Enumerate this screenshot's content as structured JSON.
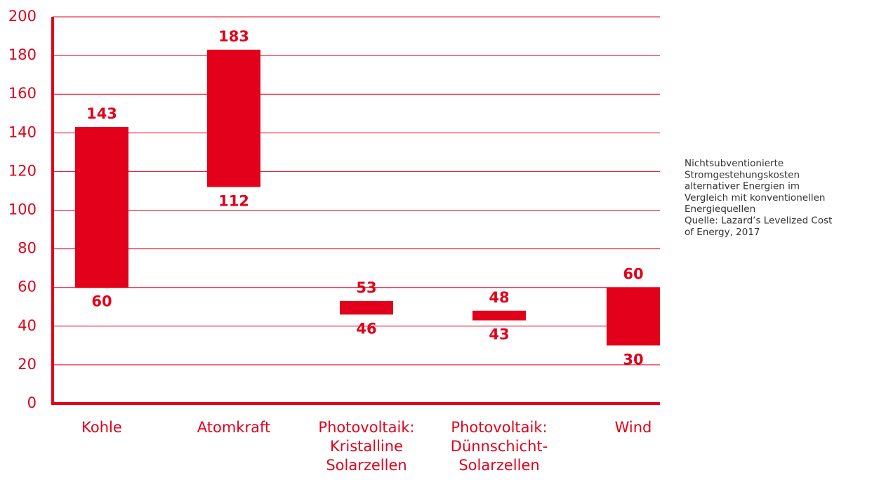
{
  "chart_data": {
    "type": "range-bar",
    "categories": [
      [
        "Kohle"
      ],
      [
        "Atomkraft"
      ],
      [
        "Photovoltaik:",
        "Kristalline",
        "Solarzellen"
      ],
      [
        "Photovoltaik:",
        "Dünnschicht-",
        "Solarzellen"
      ],
      [
        "Wind"
      ]
    ],
    "low": [
      60,
      112,
      46,
      43,
      30
    ],
    "high": [
      143,
      183,
      53,
      48,
      60
    ],
    "color": "#e2001a",
    "ylim": [
      0,
      200
    ],
    "yticks": [
      0,
      20,
      40,
      60,
      80,
      100,
      120,
      140,
      160,
      180,
      200
    ],
    "grid": true,
    "note": [
      "Nichtsubventionierte",
      "Stromgestehungskosten",
      "alternativer Energien im",
      "Vergleich mit konventionellen",
      "Energiequellen",
      "Quelle: Lazard’s Levelized Cost",
      "of Energy, 2017"
    ]
  }
}
